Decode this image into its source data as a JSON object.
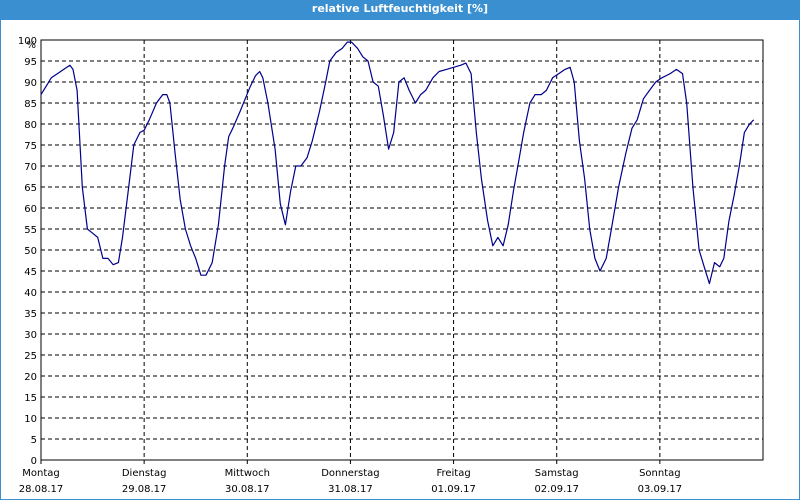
{
  "window": {
    "title": "relative Luftfeuchtigkeit [%]"
  },
  "colors": {
    "titlebar": "#3a8fd0",
    "line": "#00008b",
    "grid": "#000000"
  },
  "chart_data": {
    "type": "line",
    "title": "relative Luftfeuchtigkeit [%]",
    "ylabel": "%",
    "xlabel": "",
    "ylim": [
      0,
      100
    ],
    "yticks": [
      0,
      5,
      10,
      15,
      20,
      25,
      30,
      35,
      40,
      45,
      50,
      55,
      60,
      65,
      70,
      75,
      80,
      85,
      90,
      95,
      100
    ],
    "grid": true,
    "xlim": [
      0,
      7
    ],
    "x_unit": "days",
    "xticks": [
      {
        "x": 0,
        "day": "Montag",
        "date": "28.08.17"
      },
      {
        "x": 1,
        "day": "Dienstag",
        "date": "29.08.17"
      },
      {
        "x": 2,
        "day": "Mittwoch",
        "date": "30.08.17"
      },
      {
        "x": 3,
        "day": "Donnerstag",
        "date": "31.08.17"
      },
      {
        "x": 4,
        "day": "Freitag",
        "date": "01.09.17"
      },
      {
        "x": 5,
        "day": "Samstag",
        "date": "02.09.17"
      },
      {
        "x": 6,
        "day": "Sonntag",
        "date": "03.09.17"
      }
    ],
    "series": [
      {
        "values": [
          [
            0.0,
            87
          ],
          [
            0.05,
            89
          ],
          [
            0.1,
            91
          ],
          [
            0.16,
            92
          ],
          [
            0.22,
            93
          ],
          [
            0.28,
            94
          ],
          [
            0.31,
            93
          ],
          [
            0.35,
            88
          ],
          [
            0.4,
            65
          ],
          [
            0.45,
            55
          ],
          [
            0.5,
            54
          ],
          [
            0.55,
            53
          ],
          [
            0.6,
            48
          ],
          [
            0.65,
            48
          ],
          [
            0.7,
            46.5
          ],
          [
            0.75,
            47
          ],
          [
            0.79,
            53
          ],
          [
            0.85,
            65
          ],
          [
            0.9,
            75
          ],
          [
            0.96,
            78
          ],
          [
            1.0,
            78.5
          ],
          [
            1.05,
            81
          ],
          [
            1.12,
            85
          ],
          [
            1.18,
            87
          ],
          [
            1.22,
            87
          ],
          [
            1.25,
            85
          ],
          [
            1.3,
            73
          ],
          [
            1.35,
            62
          ],
          [
            1.4,
            55
          ],
          [
            1.45,
            51
          ],
          [
            1.5,
            48
          ],
          [
            1.55,
            44
          ],
          [
            1.6,
            44
          ],
          [
            1.66,
            47
          ],
          [
            1.72,
            56
          ],
          [
            1.78,
            70
          ],
          [
            1.82,
            77
          ],
          [
            1.86,
            79
          ],
          [
            1.93,
            83
          ],
          [
            1.98,
            86
          ],
          [
            2.03,
            89
          ],
          [
            2.08,
            91.5
          ],
          [
            2.12,
            92.5
          ],
          [
            2.15,
            91
          ],
          [
            2.2,
            85
          ],
          [
            2.27,
            74
          ],
          [
            2.32,
            61
          ],
          [
            2.37,
            56
          ],
          [
            2.42,
            64
          ],
          [
            2.47,
            70
          ],
          [
            2.52,
            70
          ],
          [
            2.58,
            72
          ],
          [
            2.63,
            76
          ],
          [
            2.7,
            83
          ],
          [
            2.76,
            90
          ],
          [
            2.8,
            95
          ],
          [
            2.86,
            97
          ],
          [
            2.92,
            98
          ],
          [
            2.97,
            99.5
          ],
          [
            3.01,
            99.5
          ],
          [
            3.07,
            98
          ],
          [
            3.12,
            96
          ],
          [
            3.17,
            95
          ],
          [
            3.22,
            90
          ],
          [
            3.27,
            89
          ],
          [
            3.32,
            82
          ],
          [
            3.37,
            74
          ],
          [
            3.42,
            78
          ],
          [
            3.47,
            90
          ],
          [
            3.52,
            91
          ],
          [
            3.57,
            88
          ],
          [
            3.63,
            85
          ],
          [
            3.68,
            87
          ],
          [
            3.73,
            88
          ],
          [
            3.8,
            91
          ],
          [
            3.86,
            92.5
          ],
          [
            3.93,
            93
          ],
          [
            4.0,
            93.5
          ],
          [
            4.07,
            94
          ],
          [
            4.12,
            94.5
          ],
          [
            4.17,
            92
          ],
          [
            4.22,
            78
          ],
          [
            4.27,
            67
          ],
          [
            4.33,
            57
          ],
          [
            4.38,
            51
          ],
          [
            4.43,
            53
          ],
          [
            4.48,
            51
          ],
          [
            4.53,
            56
          ],
          [
            4.58,
            64
          ],
          [
            4.63,
            71
          ],
          [
            4.68,
            78
          ],
          [
            4.74,
            85
          ],
          [
            4.79,
            87
          ],
          [
            4.85,
            87
          ],
          [
            4.9,
            88
          ],
          [
            4.96,
            91
          ],
          [
            5.02,
            92
          ],
          [
            5.08,
            93
          ],
          [
            5.13,
            93.5
          ],
          [
            5.17,
            90
          ],
          [
            5.22,
            76
          ],
          [
            5.27,
            67
          ],
          [
            5.32,
            55
          ],
          [
            5.37,
            48
          ],
          [
            5.42,
            45
          ],
          [
            5.48,
            48
          ],
          [
            5.53,
            55
          ],
          [
            5.6,
            65
          ],
          [
            5.67,
            73
          ],
          [
            5.73,
            79
          ],
          [
            5.78,
            81
          ],
          [
            5.84,
            86
          ],
          [
            5.9,
            88
          ],
          [
            5.96,
            90
          ],
          [
            6.02,
            91
          ],
          [
            6.1,
            92
          ],
          [
            6.16,
            93
          ],
          [
            6.22,
            92
          ],
          [
            6.26,
            85
          ],
          [
            6.32,
            65
          ],
          [
            6.38,
            50
          ],
          [
            6.43,
            46
          ],
          [
            6.48,
            42
          ],
          [
            6.53,
            47
          ],
          [
            6.58,
            46
          ],
          [
            6.62,
            48
          ],
          [
            6.67,
            57
          ],
          [
            6.72,
            63
          ],
          [
            6.77,
            70
          ],
          [
            6.82,
            78
          ],
          [
            6.87,
            80
          ],
          [
            6.91,
            81
          ]
        ]
      }
    ]
  }
}
